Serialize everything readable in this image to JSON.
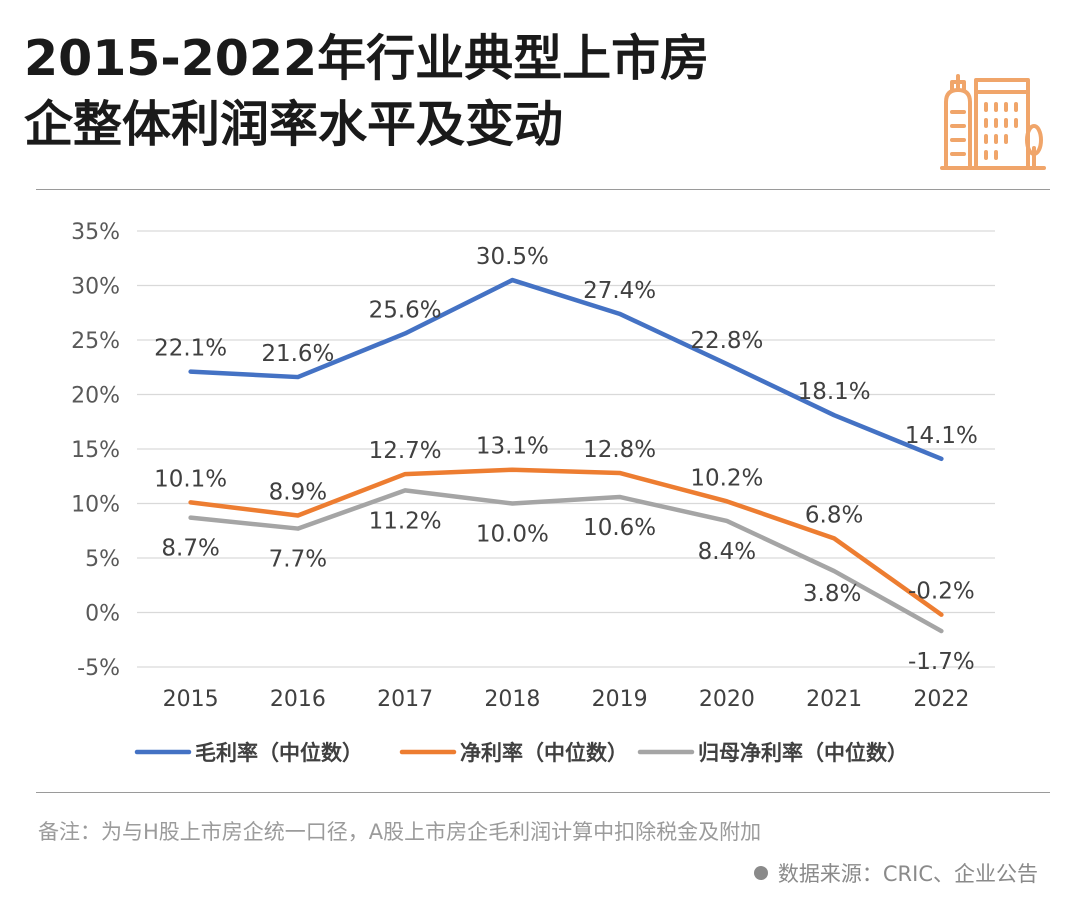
{
  "header": {
    "title_line1": "2015-2022年行业典型上市房",
    "title_line2": "企整体利润率水平及变动",
    "logo_icon": "city-buildings-icon",
    "logo_color": "#F0A56A"
  },
  "chart_data": {
    "type": "line",
    "title": "2015-2022年行业典型上市房企整体利润率水平及变动",
    "categories": [
      "2015",
      "2016",
      "2017",
      "2018",
      "2019",
      "2020",
      "2021",
      "2022"
    ],
    "yticks": [
      "35%",
      "30%",
      "25%",
      "20%",
      "15%",
      "10%",
      "5%",
      "0%",
      "-5%"
    ],
    "ylim": [
      -5,
      35
    ],
    "ylabel": "",
    "xlabel": "",
    "grid": true,
    "legend_position": "bottom",
    "series": [
      {
        "name": "毛利率（中位数）",
        "color": "#4472C4",
        "values": [
          22.1,
          21.6,
          25.6,
          30.5,
          27.4,
          22.8,
          18.1,
          14.1
        ],
        "labels": [
          "22.1%",
          "21.6%",
          "25.6%",
          "30.5%",
          "27.4%",
          "22.8%",
          "18.1%",
          "14.1%"
        ]
      },
      {
        "name": "净利率（中位数）",
        "color": "#ED7D31",
        "values": [
          10.1,
          8.9,
          12.7,
          13.1,
          12.8,
          10.2,
          6.8,
          -0.2
        ],
        "labels": [
          "10.1%",
          "8.9%",
          "12.7%",
          "13.1%",
          "12.8%",
          "10.2%",
          "6.8%",
          "-0.2%"
        ]
      },
      {
        "name": "归母净利率（中位数）",
        "color": "#A5A5A5",
        "values": [
          8.7,
          7.7,
          11.2,
          10.0,
          10.6,
          8.4,
          3.8,
          -1.7
        ],
        "labels": [
          "8.7%",
          "7.7%",
          "11.2%",
          "10.0%",
          "10.6%",
          "8.4%",
          "3.8%",
          "-1.7%"
        ]
      }
    ]
  },
  "footer": {
    "note": "备注：为与H股上市房企统一口径，A股上市房企毛利润计算中扣除税金及附加",
    "source": "数据来源：CRIC、企业公告"
  }
}
